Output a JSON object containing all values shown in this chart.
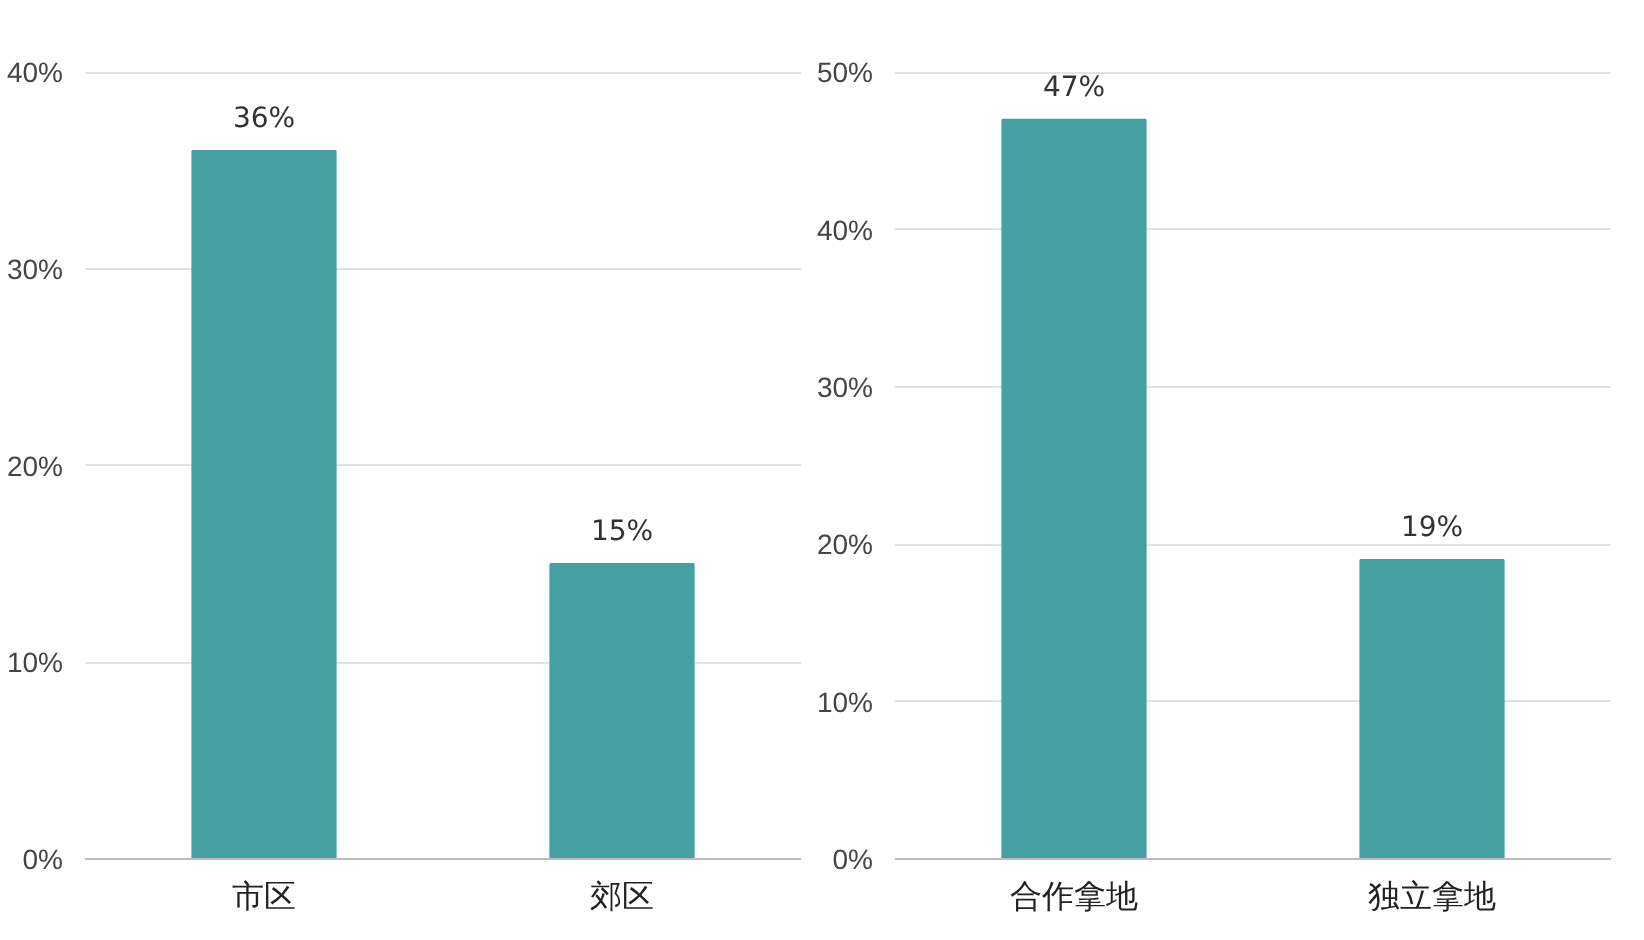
{
  "chart_data": [
    {
      "type": "bar",
      "categories": [
        "市区",
        "郊区"
      ],
      "values": [
        36,
        15
      ],
      "color": "#45a0a3",
      "value_labels": [
        "36%",
        "15%"
      ],
      "ylim": [
        0,
        40
      ],
      "yticks": [
        {
          "value": 0,
          "label": "0%"
        },
        {
          "value": 10,
          "label": "10%"
        },
        {
          "value": 20,
          "label": "20%"
        },
        {
          "value": 30,
          "label": "30%"
        },
        {
          "value": 40,
          "label": "40%"
        }
      ],
      "grid": "y"
    },
    {
      "type": "bar",
      "categories": [
        "合作拿地",
        "独立拿地"
      ],
      "values": [
        47,
        19
      ],
      "color": "#45a0a3",
      "value_labels": [
        "47%",
        "19%"
      ],
      "ylim": [
        0,
        50
      ],
      "yticks": [
        {
          "value": 0,
          "label": "0%"
        },
        {
          "value": 10,
          "label": "10%"
        },
        {
          "value": 20,
          "label": "20%"
        },
        {
          "value": 30,
          "label": "30%"
        },
        {
          "value": 40,
          "label": "40%"
        },
        {
          "value": 50,
          "label": "50%"
        }
      ],
      "grid": "y"
    }
  ]
}
